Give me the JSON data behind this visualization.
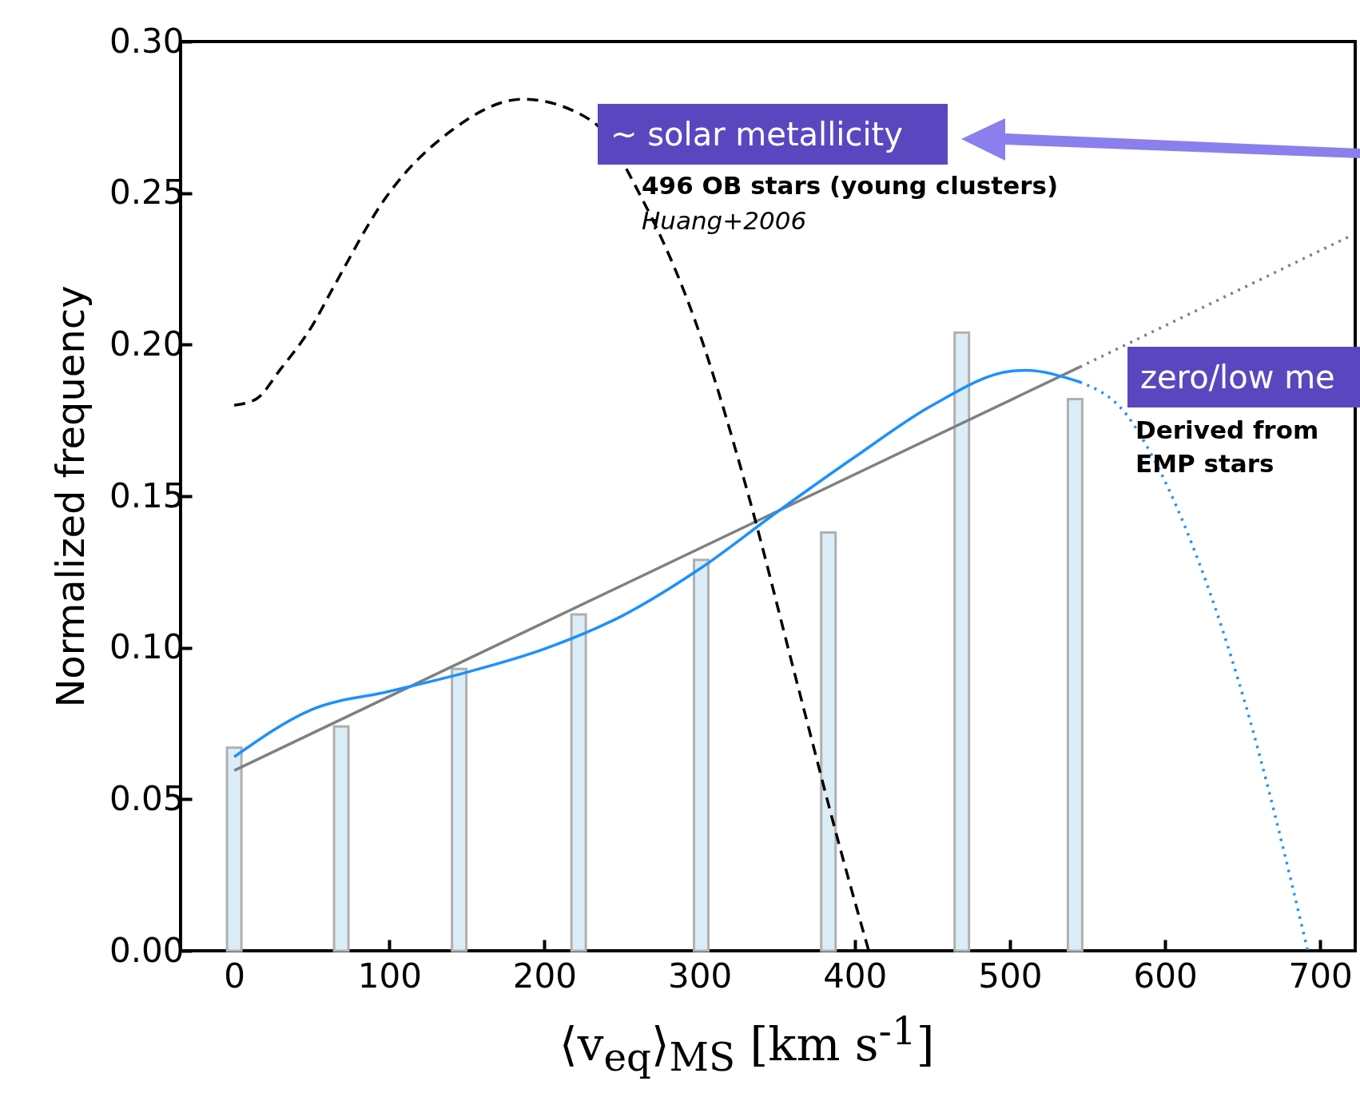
{
  "chart_data": {
    "type": "bar",
    "xlabel": "⟨v$_{eq}$⟩$_{MS}$ [km s$^{-1}$]",
    "ylabel": "Normalized frequency",
    "xlim": [
      -32,
      720
    ],
    "ylim": [
      0,
      0.3
    ],
    "xticks": [
      0,
      100,
      200,
      300,
      400,
      500,
      600,
      700
    ],
    "yticks": [
      {
        "value": 0,
        "label": "0.00"
      },
      {
        "value": 0.05,
        "label": "0.05"
      },
      {
        "value": 0.1,
        "label": "0.10"
      },
      {
        "value": 0.15,
        "label": "0.15"
      },
      {
        "value": 0.2,
        "label": "0.20"
      },
      {
        "value": 0.25,
        "label": "0.25"
      },
      {
        "value": 0.3,
        "label": "0.30"
      }
    ],
    "annotations": [
      "~ solar metallicity",
      "496 OB stars (young clusters)",
      "Huang+2006",
      "zero/low me",
      "Derived from EMP stars"
    ],
    "series": [
      {
        "color": "#dbeef7",
        "x": [
          0,
          69,
          145,
          222,
          301,
          383,
          469,
          542
        ],
        "values": [
          0.067,
          0.074,
          0.093,
          0.111,
          0.129,
          0.138,
          0.204,
          0.182
        ]
      },
      {
        "type": "line",
        "color": "#808080",
        "line_style": "solid",
        "x": [
          0,
          545
        ],
        "values": [
          0.0595,
          0.1926
        ]
      },
      {
        "type": "line",
        "color": "#808080",
        "line_style": "dotted",
        "x": [
          545,
          720
        ],
        "values": [
          0.1926,
          0.236
        ]
      },
      {
        "type": "line",
        "color": "#1e90ff",
        "line_style": "solid",
        "x": [
          0,
          50,
          100,
          150,
          200,
          250,
          300,
          350,
          400,
          450,
          500,
          510,
          545
        ],
        "values": [
          0.064,
          0.0796,
          0.0856,
          0.0919,
          0.0996,
          0.1105,
          0.126,
          0.1448,
          0.1629,
          0.18,
          0.1912,
          0.1915,
          0.1877
        ]
      },
      {
        "type": "line",
        "color": "#1e90ff",
        "line_style": "dotted",
        "x": [
          545,
          575,
          592,
          612,
          652,
          692
        ],
        "values": [
          0.1877,
          0.177,
          0.163,
          0.141,
          0.081,
          0
        ]
      },
      {
        "type": "line",
        "color": "#000000",
        "line_style": "dashed",
        "x": [
          0,
          14,
          30,
          50,
          64,
          97,
          141,
          186,
          230,
          263,
          297,
          330,
          363,
          391,
          409
        ],
        "values": [
          0.18,
          0.182,
          0.192,
          0.206,
          0.219,
          0.248,
          0.271,
          0.281,
          0.274,
          0.248,
          0.208,
          0.153,
          0.088,
          0.033,
          0
        ]
      }
    ]
  }
}
